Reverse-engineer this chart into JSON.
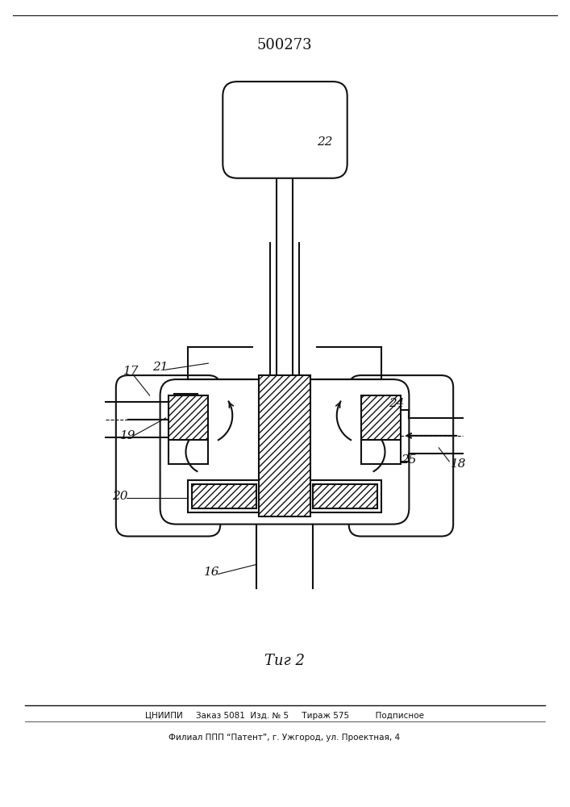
{
  "title": "500273",
  "fig_label": "Τиг 2",
  "footer_line1": "ЦНИИПИ     Заказ 5081  Изд. № 5     Тираж 575          Подписное",
  "footer_line2": "Филиал ППП “Патент”, г. Ужгород, ул. Проектная, 4",
  "bg_color": "#ffffff",
  "line_color": "#111111"
}
